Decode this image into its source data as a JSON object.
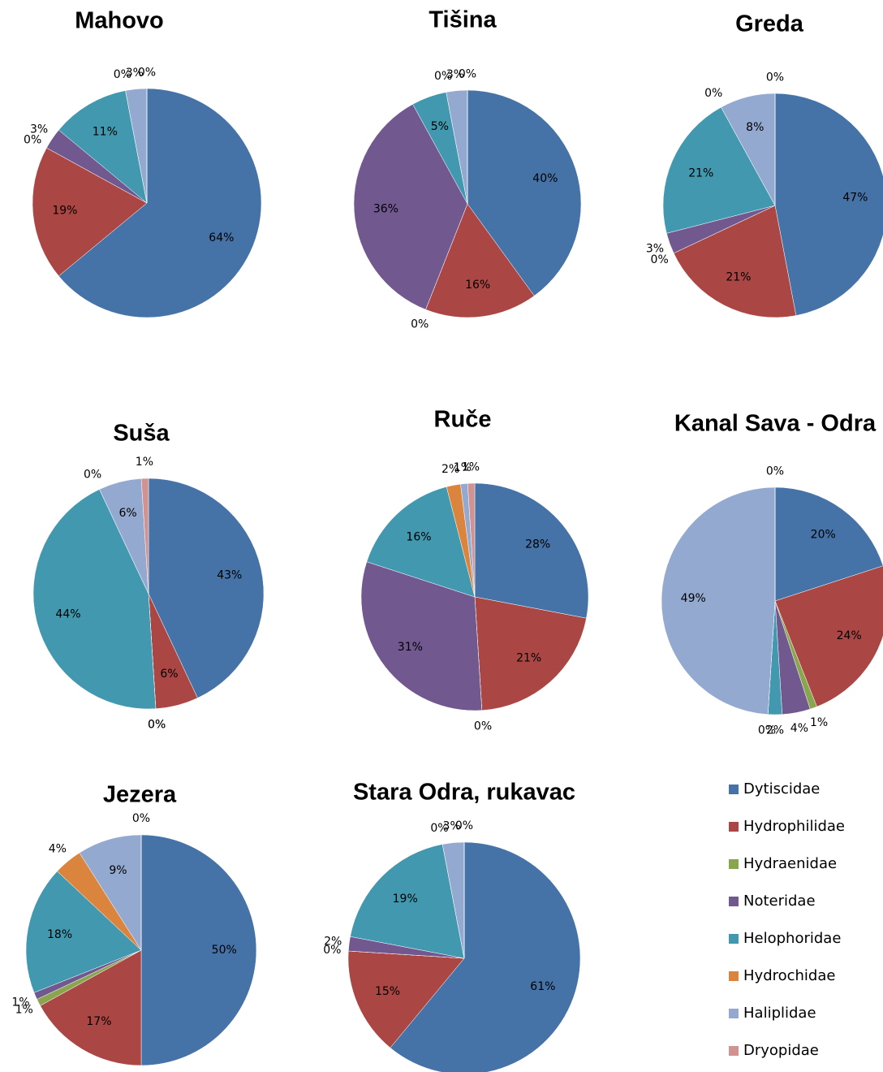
{
  "legend": {
    "categories": [
      "Dytiscidae",
      "Hydrophilidae",
      "Hydraenidae",
      "Noteridae",
      "Helophoridae",
      "Hydrochidae",
      "Haliplidae",
      "Dryopidae"
    ],
    "colors": [
      "#4572a7",
      "#aa4643",
      "#89a54e",
      "#71588f",
      "#4198af",
      "#db843d",
      "#93a9cf",
      "#d19392"
    ]
  },
  "chart_data": [
    {
      "type": "pie",
      "title": "Mahovo",
      "values": [
        64,
        19,
        0,
        3,
        11,
        0,
        3,
        0
      ],
      "value_labels": [
        "64%",
        "19%",
        "0%",
        "3%",
        "11%",
        "0%",
        "3%",
        "0%"
      ]
    },
    {
      "type": "pie",
      "title": "Tišina",
      "values": [
        40,
        16,
        0,
        36,
        5,
        0,
        3,
        0
      ],
      "value_labels": [
        "40%",
        "16%",
        "0%",
        "36%",
        "5%",
        "0%",
        "3%",
        "0%"
      ]
    },
    {
      "type": "pie",
      "title": "Greda",
      "values": [
        47,
        21,
        0,
        3,
        21,
        0,
        8,
        0
      ],
      "value_labels": [
        "47%",
        "21%",
        "0%",
        "3%",
        "21%",
        "0%",
        "8%",
        "0%"
      ]
    },
    {
      "type": "pie",
      "title": "Suša",
      "values": [
        43,
        6,
        0,
        0,
        44,
        0,
        6,
        1
      ],
      "value_labels": [
        "43%",
        "6%",
        "0%",
        "0%",
        "44%",
        "0%",
        "6%",
        "1%"
      ]
    },
    {
      "type": "pie",
      "title": "Ruče",
      "values": [
        28,
        21,
        0,
        31,
        16,
        2,
        1,
        1
      ],
      "value_labels": [
        "28%",
        "21%",
        "0%",
        "31%",
        "16%",
        "2%",
        "1%",
        "1%"
      ]
    },
    {
      "type": "pie",
      "title": "Kanal Sava - Odra",
      "values": [
        20,
        24,
        1,
        4,
        2,
        0,
        49,
        0
      ],
      "value_labels": [
        "20%",
        "24%",
        "1%",
        "4%",
        "2%",
        "0%",
        "49%",
        "0%"
      ]
    },
    {
      "type": "pie",
      "title": "Jezera",
      "values": [
        50,
        17,
        1,
        1,
        18,
        4,
        9,
        0
      ],
      "value_labels": [
        "50%",
        "17%",
        "1%",
        "1%",
        "18%",
        "4%",
        "9%",
        "0%"
      ]
    },
    {
      "type": "pie",
      "title": "Stara Odra, rukavac",
      "values": [
        61,
        15,
        0,
        2,
        19,
        0,
        3,
        0
      ],
      "value_labels": [
        "61%",
        "15%",
        "0%",
        "2%",
        "19%",
        "0%",
        "3%",
        "0%"
      ]
    }
  ]
}
